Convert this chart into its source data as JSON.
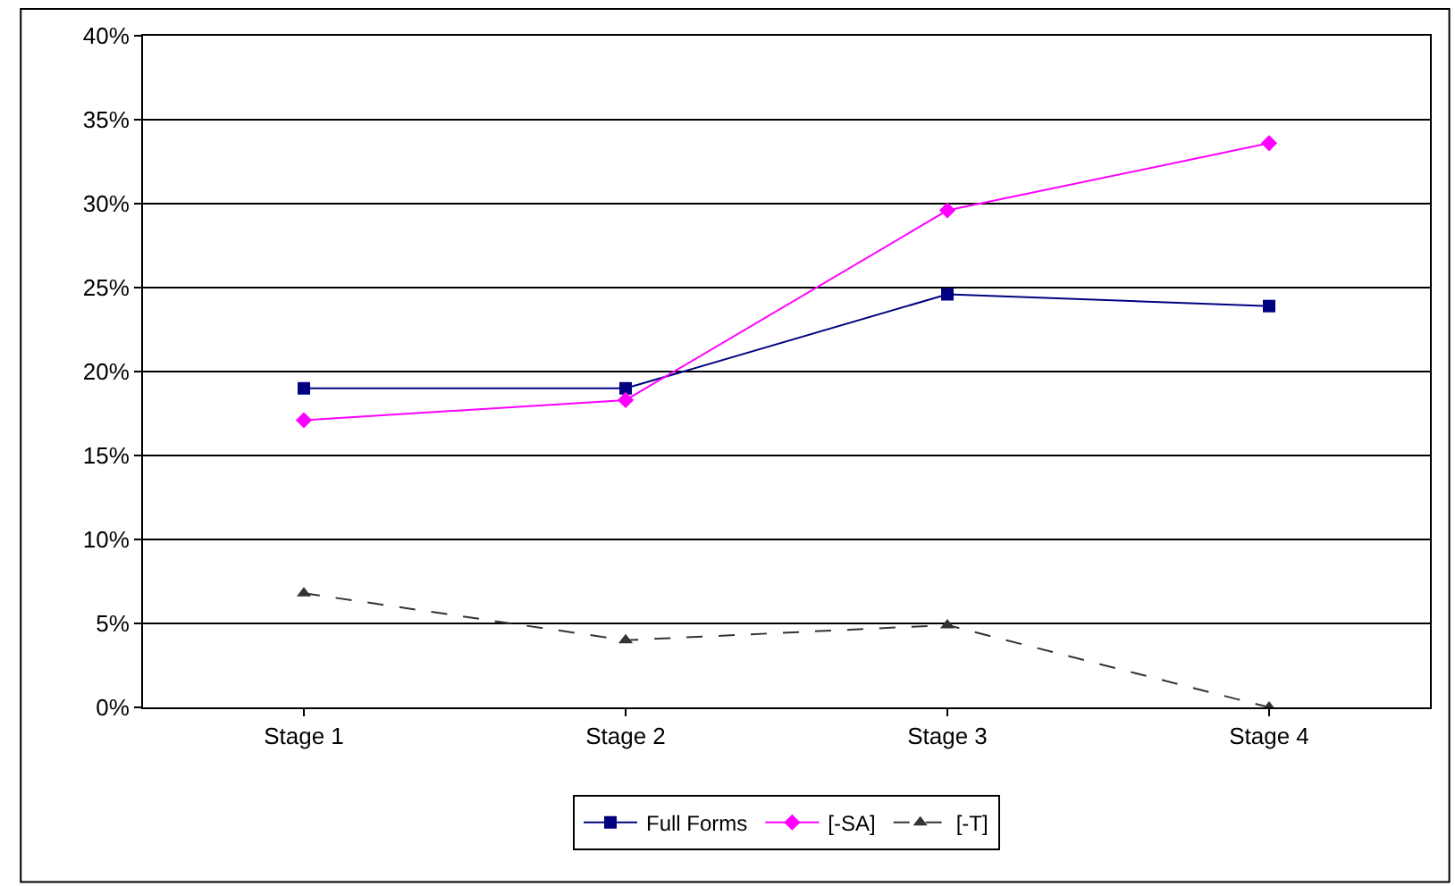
{
  "chart_data": {
    "type": "line",
    "categories": [
      "Stage 1",
      "Stage 2",
      "Stage 3",
      "Stage 4"
    ],
    "series": [
      {
        "name": "Full Forms",
        "color": "#000080",
        "marker": "square",
        "line_style": "solid",
        "values": [
          19.0,
          19.0,
          24.6,
          23.9
        ]
      },
      {
        "name": "[-SA]",
        "color": "#ff00ff",
        "marker": "diamond",
        "line_style": "solid",
        "values": [
          17.1,
          18.3,
          29.6,
          33.6
        ]
      },
      {
        "name": "[-T]",
        "color": "#333333",
        "marker": "triangle",
        "line_style": "dashed",
        "values": [
          6.8,
          4.0,
          4.9,
          0.0
        ]
      }
    ],
    "ylim": [
      0,
      40
    ],
    "yticks": [
      {
        "value": 0,
        "label": "0%"
      },
      {
        "value": 5,
        "label": "5%"
      },
      {
        "value": 10,
        "label": "10%"
      },
      {
        "value": 15,
        "label": "15%"
      },
      {
        "value": 20,
        "label": "20%"
      },
      {
        "value": 25,
        "label": "25%"
      },
      {
        "value": 30,
        "label": "30%"
      },
      {
        "value": 35,
        "label": "35%"
      },
      {
        "value": 40,
        "label": "40%"
      }
    ],
    "grid": "y",
    "legend": "bottom"
  }
}
